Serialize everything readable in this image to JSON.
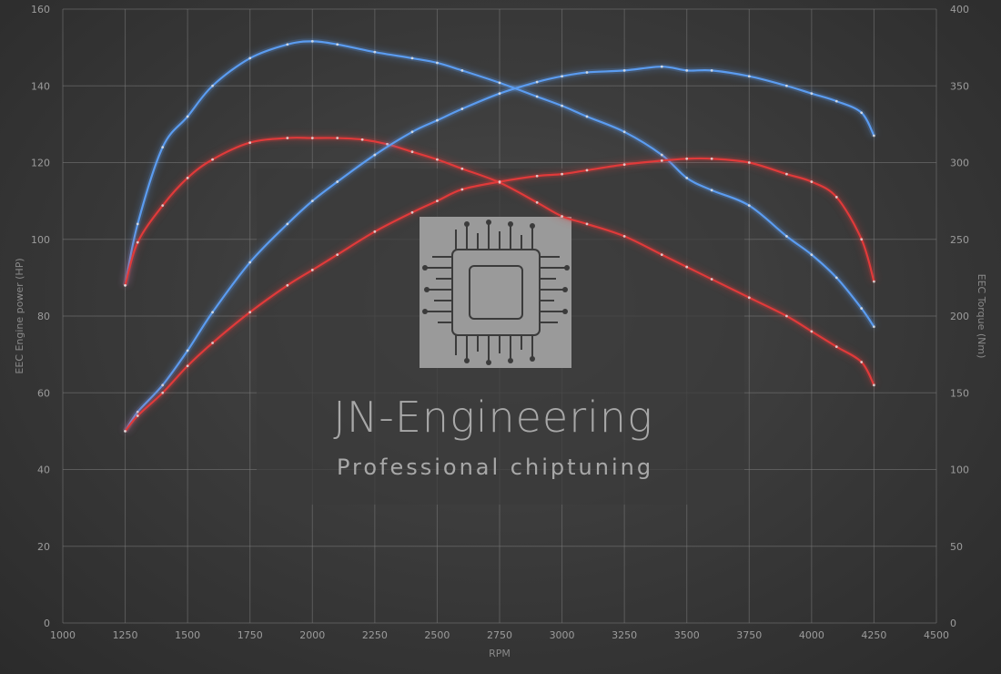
{
  "chart_data": {
    "type": "line",
    "xlabel": "RPM",
    "ylabel_left": "EEC Engine power (HP)",
    "ylabel_right": "EEC Torque (Nm)",
    "xlim": [
      1000,
      4500
    ],
    "x_ticks": [
      1000,
      1250,
      1500,
      1750,
      2000,
      2250,
      2500,
      2750,
      3000,
      3250,
      3500,
      3750,
      4000,
      4250,
      4500
    ],
    "ylim_left": [
      0,
      160
    ],
    "y_ticks_left": [
      0,
      20,
      40,
      60,
      80,
      100,
      120,
      140,
      160
    ],
    "ylim_right": [
      0,
      400
    ],
    "y_ticks_right": [
      0,
      50,
      100,
      150,
      200,
      250,
      300,
      350,
      400
    ],
    "grid": true,
    "colors": {
      "tuned": "#5b9cf0",
      "stock": "#e03a3a"
    },
    "series": [
      {
        "key": "torque-tuned",
        "axis": "right",
        "color": "#5b9cf0",
        "x": [
          1250,
          1300,
          1400,
          1500,
          1600,
          1750,
          1900,
          2000,
          2100,
          2250,
          2400,
          2500,
          2600,
          2750,
          2900,
          3000,
          3100,
          3250,
          3400,
          3500,
          3600,
          3750,
          3900,
          4000,
          4100,
          4200,
          4250
        ],
        "y": [
          220,
          260,
          310,
          330,
          350,
          368,
          377,
          379,
          377,
          372,
          368,
          365,
          360,
          352,
          343,
          337,
          330,
          320,
          305,
          290,
          282,
          272,
          252,
          240,
          225,
          205,
          193
        ]
      },
      {
        "key": "torque-stock",
        "axis": "right",
        "color": "#e03a3a",
        "x": [
          1250,
          1300,
          1400,
          1500,
          1600,
          1750,
          1900,
          2000,
          2100,
          2200,
          2300,
          2400,
          2500,
          2600,
          2750,
          2900,
          3000,
          3100,
          3250,
          3400,
          3500,
          3600,
          3750,
          3900,
          4000,
          4100,
          4200,
          4250
        ],
        "y": [
          220,
          248,
          272,
          290,
          302,
          313,
          316,
          316,
          316,
          315,
          312,
          307,
          302,
          296,
          287,
          274,
          265,
          260,
          252,
          240,
          232,
          224,
          212,
          200,
          190,
          180,
          170,
          155
        ]
      },
      {
        "key": "power-tuned",
        "axis": "left",
        "color": "#5b9cf0",
        "x": [
          1250,
          1300,
          1400,
          1500,
          1600,
          1750,
          1900,
          2000,
          2100,
          2250,
          2400,
          2500,
          2600,
          2750,
          2900,
          3000,
          3100,
          3250,
          3400,
          3500,
          3600,
          3750,
          3900,
          4000,
          4100,
          4200,
          4250
        ],
        "y": [
          50,
          55,
          62,
          71,
          81,
          94,
          104,
          110,
          115,
          122,
          128,
          131,
          134,
          138,
          141,
          142.5,
          143.5,
          144,
          145,
          144,
          144,
          142.5,
          140,
          138,
          136,
          133,
          127
        ]
      },
      {
        "key": "power-stock",
        "axis": "left",
        "color": "#e03a3a",
        "x": [
          1250,
          1300,
          1400,
          1500,
          1600,
          1750,
          1900,
          2000,
          2100,
          2250,
          2400,
          2500,
          2600,
          2750,
          2900,
          3000,
          3100,
          3250,
          3400,
          3500,
          3600,
          3750,
          3900,
          4000,
          4100,
          4200,
          4250
        ],
        "y": [
          50,
          54,
          60,
          67,
          73,
          81,
          88,
          92,
          96,
          102,
          107,
          110,
          113,
          115,
          116.5,
          117,
          118,
          119.5,
          120.5,
          121,
          121,
          120,
          117,
          115,
          111,
          100,
          89
        ]
      }
    ]
  },
  "watermark": {
    "title": "JN-Engineering",
    "subtitle": "Professional chiptuning",
    "icon": "microchip-icon"
  }
}
